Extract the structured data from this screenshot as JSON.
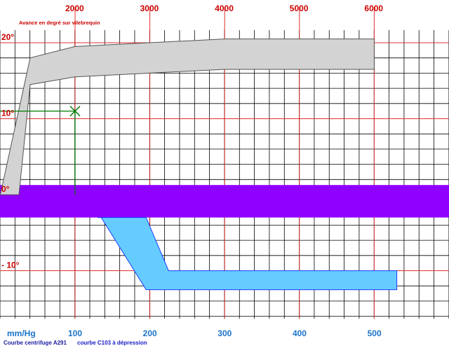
{
  "chart_data": {
    "type": "area",
    "title": "Avance  en degré sur vilebrequin",
    "x_top": {
      "unit": "",
      "ticks": [
        "2000",
        "3000",
        "4000",
        "5000",
        "6000"
      ],
      "values": [
        2000,
        3000,
        4000,
        5000,
        6000
      ]
    },
    "x_bottom": {
      "unit": "mm/Hg",
      "ticks": [
        "100",
        "200",
        "300",
        "400",
        "500"
      ],
      "values": [
        100,
        200,
        300,
        400,
        500
      ]
    },
    "y": {
      "ticks": [
        "20°",
        "10°",
        "0°",
        "- 10°"
      ],
      "values": [
        20,
        10,
        0,
        -10
      ],
      "ylim": [
        -12.5,
        22
      ]
    },
    "series": [
      {
        "name": "Courbe centrifuge A291",
        "axis": "top_rpm",
        "color": "#d3d3d3",
        "outline": "#555555",
        "polygon": [
          [
            1000,
            0
          ],
          [
            1400,
            18
          ],
          [
            2000,
            19.5
          ],
          [
            4000,
            20.5
          ],
          [
            6000,
            20.5
          ],
          [
            6000,
            16.5
          ],
          [
            4000,
            16.5
          ],
          [
            2000,
            15.5
          ],
          [
            1400,
            14.5
          ],
          [
            1250,
            0
          ]
        ]
      },
      {
        "name": "courbe C103 à dépression",
        "axis": "bottom_mmhg",
        "color": "#66ccff",
        "outline": "#1a3cff",
        "polygon": [
          [
            130,
            -3
          ],
          [
            195,
            -3
          ],
          [
            225,
            -10
          ],
          [
            530,
            -10
          ],
          [
            530,
            -12.5
          ],
          [
            195,
            -12.5
          ],
          [
            135,
            -3
          ]
        ]
      }
    ],
    "band": {
      "y_range": [
        -3,
        1
      ],
      "color": "#8f00ff"
    },
    "annotation": {
      "x": 2000,
      "y": 11,
      "marker": "x",
      "color": "#007a00"
    }
  },
  "legend": {
    "bottom_unit": "mm/Hg",
    "centrifuge": "Courbe centrifuge A291",
    "depression": "courbe C103 à dépression"
  }
}
